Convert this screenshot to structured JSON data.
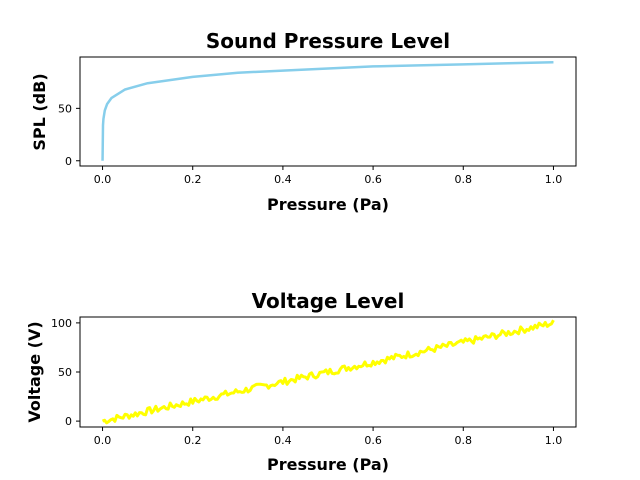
{
  "chart_data": [
    {
      "type": "line",
      "title": "Sound Pressure Level",
      "xlabel": "Pressure (Pa)",
      "ylabel": "SPL (dB)",
      "xlim": [
        -0.05,
        1.05
      ],
      "ylim": [
        -5,
        99
      ],
      "x_ticks": [
        0.0,
        0.2,
        0.4,
        0.6,
        0.8,
        1.0
      ],
      "x_tick_labels": [
        "0.0",
        "0.2",
        "0.4",
        "0.6",
        "0.8",
        "1.0"
      ],
      "y_ticks": [
        0,
        50
      ],
      "y_tick_labels": [
        "0",
        "50"
      ],
      "grid": false,
      "series": [
        {
          "color": "#87ceeb",
          "x": [
            0.0,
            0.001,
            0.002,
            0.005,
            0.01,
            0.02,
            0.05,
            0.1,
            0.2,
            0.3,
            0.4,
            0.5,
            0.6,
            0.7,
            0.8,
            0.9,
            1.0
          ],
          "y": [
            0,
            34,
            40,
            48,
            54,
            60,
            68,
            74,
            80,
            84,
            86,
            88,
            90,
            91,
            92,
            93,
            94
          ]
        }
      ]
    },
    {
      "type": "line",
      "title": "Voltage Level",
      "xlabel": "Pressure (Pa)",
      "ylabel": "Voltage (V)",
      "xlim": [
        -0.05,
        1.05
      ],
      "ylim": [
        -6,
        106
      ],
      "x_ticks": [
        0.0,
        0.2,
        0.4,
        0.6,
        0.8,
        1.0
      ],
      "x_tick_labels": [
        "0.0",
        "0.2",
        "0.4",
        "0.6",
        "0.8",
        "1.0"
      ],
      "y_ticks": [
        0,
        50,
        100
      ],
      "y_tick_labels": [
        "0",
        "50",
        "100"
      ],
      "grid": false,
      "series": [
        {
          "color": "#ffff00",
          "x": [
            0.0,
            0.05,
            0.1,
            0.15,
            0.2,
            0.25,
            0.3,
            0.35,
            0.4,
            0.45,
            0.5,
            0.55,
            0.6,
            0.65,
            0.7,
            0.75,
            0.8,
            0.85,
            0.9,
            0.95,
            1.0
          ],
          "y": [
            0,
            5,
            10,
            15,
            20,
            25,
            30,
            35,
            40,
            45,
            50,
            55,
            60,
            65,
            70,
            75,
            80,
            85,
            90,
            95,
            100
          ]
        }
      ]
    }
  ]
}
